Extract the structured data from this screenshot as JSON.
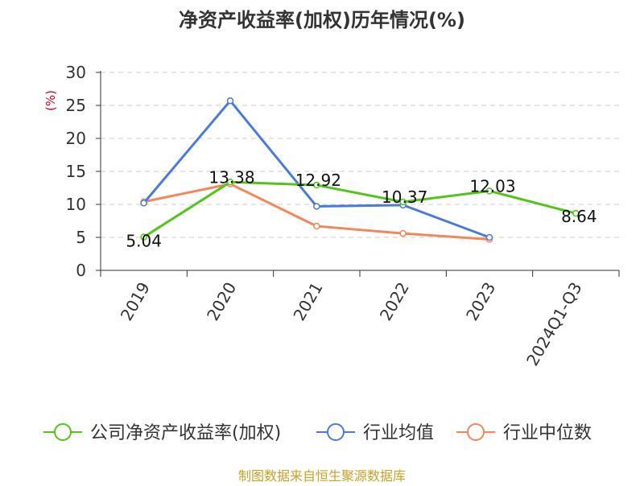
{
  "chart_data": {
    "type": "line",
    "title": "净资产收益率(加权)历年情况(%)",
    "ylabel": "(%)",
    "categories": [
      "2019",
      "2020",
      "2021",
      "2022",
      "2023",
      "2024Q1-Q3"
    ],
    "ylim": [
      0,
      30
    ],
    "yticks": [
      "0",
      "5",
      "10",
      "15",
      "20",
      "25",
      "30"
    ],
    "grid": true,
    "legend_position": "bottom",
    "series": [
      {
        "name": "公司净资产收益率(加权)",
        "color": "#52c41a",
        "values": [
          5.04,
          13.38,
          12.92,
          10.37,
          12.03,
          8.64
        ],
        "labels": [
          "5.04",
          "13.38",
          "12.92",
          "10.37",
          "12.03",
          "8.64"
        ]
      },
      {
        "name": "行业均值",
        "color": "#4a7bd8",
        "values": [
          10.2,
          25.7,
          9.7,
          9.9,
          5.0,
          null
        ]
      },
      {
        "name": "行业中位数",
        "color": "#f4875a",
        "values": [
          10.4,
          13.1,
          6.7,
          5.6,
          4.7,
          null
        ]
      }
    ]
  },
  "source": "制图数据来自恒生聚源数据库"
}
